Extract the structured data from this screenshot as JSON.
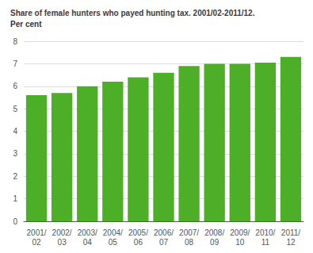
{
  "chart_data": {
    "type": "bar",
    "title": "Share of female hunters who payed hunting tax. 2001/02-2011/12.",
    "subtitle": "Per cent",
    "categories": [
      "2001/\n02",
      "2002/\n03",
      "2003/\n04",
      "2004/\n05",
      "2005/\n06",
      "2006/\n07",
      "2007/\n08",
      "2008/\n09",
      "2009/\n10",
      "2010/\n11",
      "2011/\n12"
    ],
    "values": [
      5.6,
      5.7,
      6.0,
      6.2,
      6.4,
      6.6,
      6.9,
      7.0,
      7.0,
      7.05,
      7.3
    ],
    "color": "#4caf27",
    "ylim": [
      0,
      8
    ],
    "yticks": [
      0,
      1,
      2,
      3,
      4,
      5,
      6,
      7,
      8
    ],
    "grid": true
  }
}
